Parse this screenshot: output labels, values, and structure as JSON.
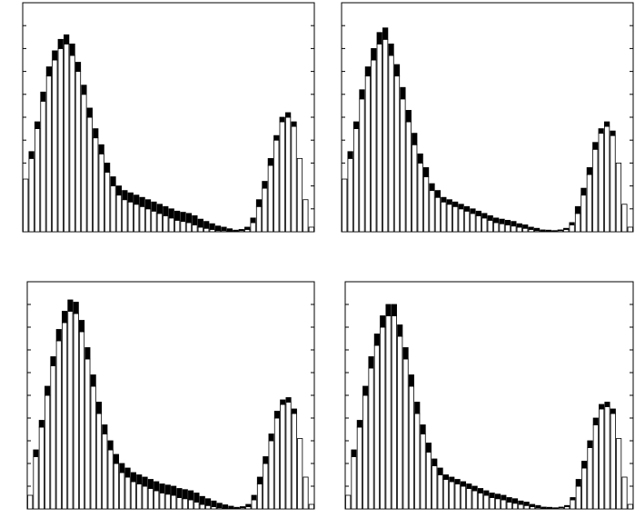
{
  "chart_data": [
    {
      "type": "bar",
      "stacked": true,
      "categories": [
        null,
        null,
        null,
        null,
        null,
        null,
        null,
        null,
        null,
        null,
        null,
        null,
        null,
        null,
        null,
        null,
        null,
        null,
        null,
        null,
        null,
        null,
        null,
        null,
        null,
        null,
        null,
        null,
        null,
        null,
        null,
        null,
        null,
        null,
        null,
        null,
        null,
        null,
        null,
        null,
        null,
        null,
        null,
        null,
        null,
        null,
        null,
        null,
        null,
        null
      ],
      "series": [
        {
          "color": "#ffffff",
          "values": [
            23,
            32,
            45,
            57,
            68,
            75,
            80,
            82,
            77,
            70,
            60,
            50,
            41,
            34,
            26,
            20,
            16,
            14,
            13,
            12,
            11,
            10,
            9,
            8,
            7,
            6,
            5,
            4.5,
            4,
            3,
            2,
            1.5,
            1,
            0.5,
            0.5,
            0.3,
            0.2,
            0.5,
            1,
            4,
            11,
            19,
            29,
            40,
            48,
            50,
            46,
            32,
            14,
            2
          ]
        },
        {
          "color": "#000000",
          "values": [
            0,
            3,
            3,
            4,
            4,
            4,
            4,
            4,
            5,
            4,
            4,
            4,
            4,
            4,
            4,
            4,
            4,
            4,
            4,
            4,
            4,
            4,
            4,
            4,
            4,
            4,
            4,
            4,
            4,
            4,
            3.5,
            3,
            2.5,
            2,
            1.5,
            1,
            0.5,
            0.5,
            1,
            2,
            3,
            3,
            3,
            2,
            2,
            2,
            2,
            0,
            0,
            0
          ]
        }
      ],
      "ylim": [
        0,
        100
      ],
      "yticks": [
        0,
        10,
        20,
        30,
        40,
        50,
        60,
        70,
        80,
        90,
        100
      ]
    },
    {
      "type": "bar",
      "stacked": true,
      "categories": [
        null,
        null,
        null,
        null,
        null,
        null,
        null,
        null,
        null,
        null,
        null,
        null,
        null,
        null,
        null,
        null,
        null,
        null,
        null,
        null,
        null,
        null,
        null,
        null,
        null,
        null,
        null,
        null,
        null,
        null,
        null,
        null,
        null,
        null,
        null,
        null,
        null,
        null,
        null,
        null,
        null,
        null,
        null,
        null,
        null,
        null,
        null,
        null,
        null,
        null
      ],
      "series": [
        {
          "color": "#ffffff",
          "values": [
            23,
            32,
            45,
            58,
            68,
            75,
            82,
            84,
            77,
            68,
            58,
            48,
            38,
            30,
            24,
            18,
            15,
            13,
            12,
            11,
            10,
            9,
            8,
            7,
            6,
            5,
            4,
            3.5,
            3,
            2.5,
            2,
            1.5,
            1,
            0.5,
            0.3,
            0.2,
            0.2,
            0.5,
            1,
            3,
            8,
            16,
            25,
            36,
            43,
            46,
            42,
            30,
            12,
            2
          ]
        },
        {
          "color": "#000000",
          "values": [
            0,
            3,
            3,
            4,
            4,
            5,
            5,
            5,
            5,
            5,
            5,
            5,
            5,
            4,
            4,
            3,
            3,
            2,
            2,
            2,
            2,
            2,
            2,
            2,
            2,
            2,
            2,
            2,
            2,
            2,
            1.5,
            1.5,
            1,
            1,
            0.5,
            0.5,
            0.3,
            0.3,
            0.5,
            1,
            3,
            3,
            3,
            3,
            2,
            2,
            2,
            0,
            0,
            0
          ]
        }
      ],
      "ylim": [
        0,
        100
      ],
      "yticks": [
        0,
        10,
        20,
        30,
        40,
        50,
        60,
        70,
        80,
        90,
        100
      ]
    },
    {
      "type": "bar",
      "stacked": true,
      "categories": [
        null,
        null,
        null,
        null,
        null,
        null,
        null,
        null,
        null,
        null,
        null,
        null,
        null,
        null,
        null,
        null,
        null,
        null,
        null,
        null,
        null,
        null,
        null,
        null,
        null,
        null,
        null,
        null,
        null,
        null,
        null,
        null,
        null,
        null,
        null,
        null,
        null,
        null,
        null,
        null,
        null,
        null,
        null,
        null,
        null,
        null,
        null,
        null,
        null,
        null
      ],
      "series": [
        {
          "color": "#ffffff",
          "values": [
            6,
            23,
            36,
            50,
            63,
            74,
            82,
            87,
            86,
            78,
            66,
            54,
            42,
            33,
            26,
            20,
            16,
            14,
            12,
            11,
            10,
            9,
            8,
            7,
            6.5,
            6,
            5,
            4.5,
            4,
            3,
            2,
            1.5,
            1,
            0.5,
            0.3,
            0.2,
            0.2,
            0.5,
            1,
            4,
            11,
            20,
            30,
            40,
            46,
            47,
            42,
            31,
            14,
            2
          ]
        },
        {
          "color": "#000000",
          "values": [
            0,
            3,
            3,
            4,
            4,
            5,
            5,
            5,
            5,
            5,
            5,
            5,
            5,
            4,
            4,
            4,
            4,
            4,
            4,
            4,
            4,
            4,
            4,
            4,
            4,
            4,
            4,
            4,
            4,
            4,
            3.5,
            3,
            2.5,
            2,
            1.5,
            1,
            0.5,
            0.5,
            1,
            2,
            3,
            3,
            3,
            3,
            2,
            2,
            2,
            0,
            0,
            0
          ]
        }
      ],
      "ylim": [
        0,
        100
      ],
      "yticks": [
        0,
        10,
        20,
        30,
        40,
        50,
        60,
        70,
        80,
        90,
        100
      ]
    },
    {
      "type": "bar",
      "stacked": true,
      "categories": [
        null,
        null,
        null,
        null,
        null,
        null,
        null,
        null,
        null,
        null,
        null,
        null,
        null,
        null,
        null,
        null,
        null,
        null,
        null,
        null,
        null,
        null,
        null,
        null,
        null,
        null,
        null,
        null,
        null,
        null,
        null,
        null,
        null,
        null,
        null,
        null,
        null,
        null,
        null,
        null,
        null,
        null,
        null,
        null,
        null,
        null,
        null,
        null,
        null,
        null
      ],
      "series": [
        {
          "color": "#ffffff",
          "values": [
            6,
            23,
            36,
            50,
            62,
            72,
            80,
            85,
            85,
            76,
            66,
            54,
            42,
            33,
            25,
            19,
            15,
            13,
            12,
            11,
            10,
            9,
            8,
            7,
            6,
            5,
            4.5,
            4,
            3,
            2.5,
            2,
            1.5,
            1,
            0.5,
            0.3,
            0.2,
            0.2,
            0.5,
            1,
            4,
            10,
            18,
            27,
            37,
            44,
            45,
            42,
            31,
            14,
            2
          ]
        },
        {
          "color": "#000000",
          "values": [
            0,
            3,
            3,
            4,
            5,
            5,
            5,
            5,
            5,
            5,
            5,
            5,
            5,
            4,
            4,
            3,
            3,
            2,
            2,
            2,
            2,
            2,
            2,
            2,
            2,
            2,
            2,
            2,
            2,
            2,
            1.5,
            1.5,
            1,
            1,
            0.5,
            0.5,
            0.3,
            0.3,
            0.5,
            1,
            3,
            3,
            3,
            3,
            2,
            2,
            2,
            0,
            0,
            0
          ]
        }
      ],
      "ylim": [
        0,
        100
      ],
      "yticks": [
        0,
        10,
        20,
        30,
        40,
        50,
        60,
        70,
        80,
        90,
        100
      ]
    }
  ]
}
